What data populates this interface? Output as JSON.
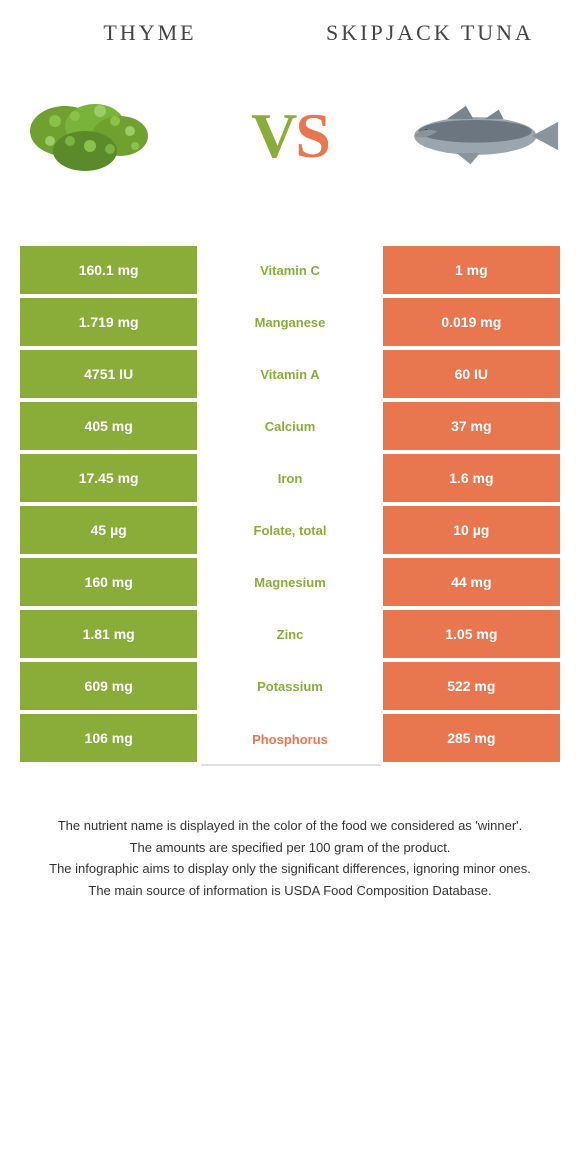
{
  "header": {
    "left_title": "THYME",
    "right_title": "SKIPJACK TUNA"
  },
  "vs": {
    "v": "V",
    "s": "S"
  },
  "colors": {
    "green": "#8aad3a",
    "orange": "#e8764f"
  },
  "rows": [
    {
      "left": "160.1 mg",
      "mid": "Vitamin C",
      "right": "1 mg",
      "winner": "green"
    },
    {
      "left": "1.719 mg",
      "mid": "Manganese",
      "right": "0.019 mg",
      "winner": "green"
    },
    {
      "left": "4751 IU",
      "mid": "Vitamin A",
      "right": "60 IU",
      "winner": "green"
    },
    {
      "left": "405 mg",
      "mid": "Calcium",
      "right": "37 mg",
      "winner": "green"
    },
    {
      "left": "17.45 mg",
      "mid": "Iron",
      "right": "1.6 mg",
      "winner": "green"
    },
    {
      "left": "45 µg",
      "mid": "Folate, total",
      "right": "10 µg",
      "winner": "green"
    },
    {
      "left": "160 mg",
      "mid": "Magnesium",
      "right": "44 mg",
      "winner": "green"
    },
    {
      "left": "1.81 mg",
      "mid": "Zinc",
      "right": "1.05 mg",
      "winner": "green"
    },
    {
      "left": "609 mg",
      "mid": "Potassium",
      "right": "522 mg",
      "winner": "green"
    },
    {
      "left": "106 mg",
      "mid": "Phosphorus",
      "right": "285 mg",
      "winner": "orange"
    }
  ],
  "footer": {
    "line1": "The nutrient name is displayed in the color of the food we considered as 'winner'.",
    "line2": "The amounts are specified per 100 gram of the product.",
    "line3": "The infographic aims to display only the significant differences, ignoring minor ones.",
    "line4": "The main source of information is USDA Food Composition Database."
  }
}
